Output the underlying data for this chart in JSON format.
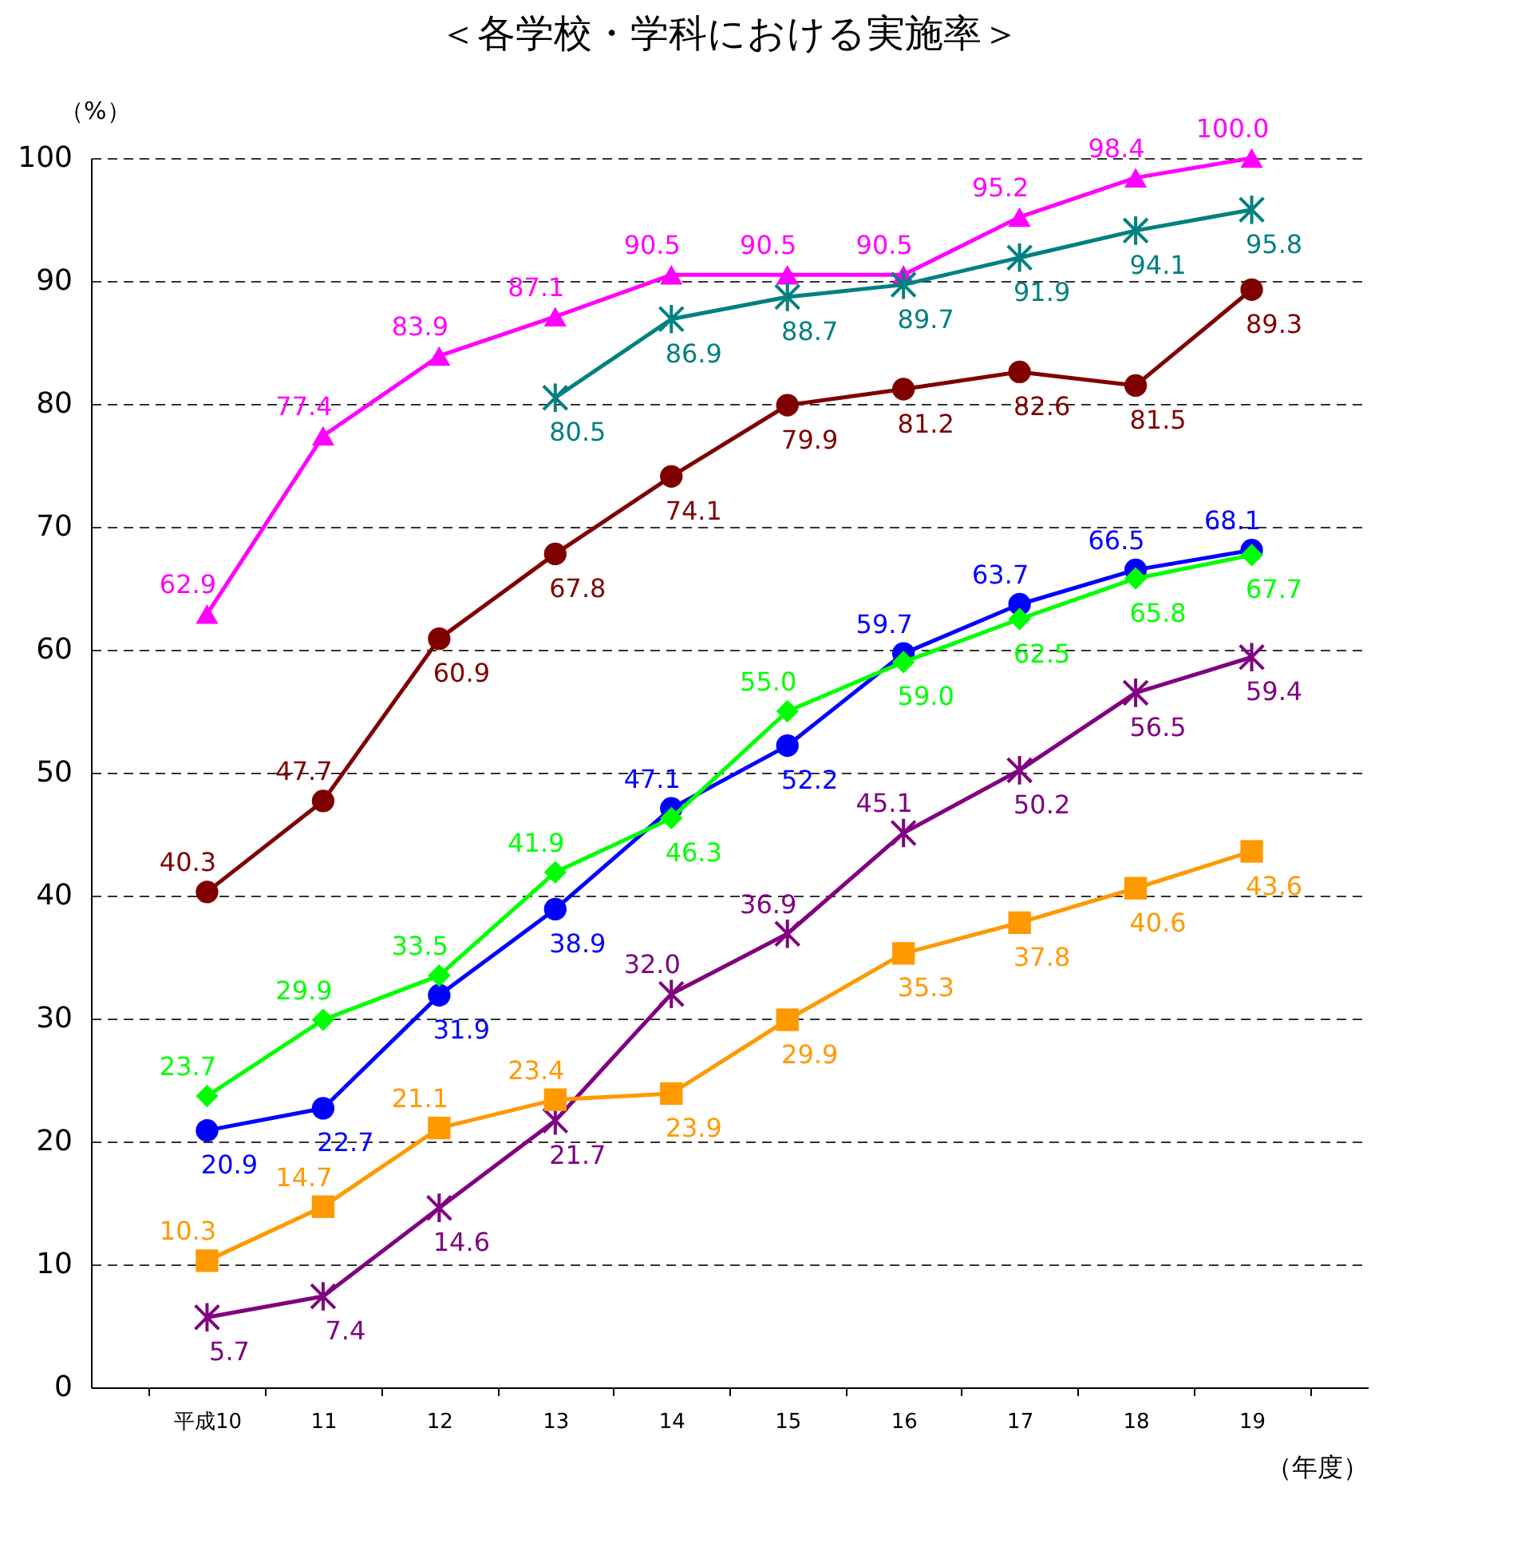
{
  "chart_data": {
    "type": "line",
    "title": "＜各学校・学科における実施率＞",
    "xlabel": "（年度）",
    "ylabel": "（%）",
    "categories": [
      "平成10",
      "11",
      "12",
      "13",
      "14",
      "15",
      "16",
      "17",
      "18",
      "19"
    ],
    "series": [
      {
        "color": "#ff00ff",
        "marker": "triangle",
        "values": [
          62.9,
          77.4,
          83.9,
          87.1,
          90.5,
          90.5,
          90.5,
          95.2,
          98.4,
          100.0
        ],
        "value_labels": [
          "62.9",
          "77.4",
          "83.9",
          "87.1",
          "90.5",
          "90.5",
          "90.5",
          "95.2",
          "98.4",
          "100.0"
        ]
      },
      {
        "color": "#008080",
        "marker": "cross",
        "values": [
          null,
          null,
          null,
          80.5,
          86.9,
          88.7,
          89.7,
          91.9,
          94.1,
          95.8
        ],
        "value_labels": [
          null,
          null,
          null,
          "80.5",
          "86.9",
          "88.7",
          "89.7",
          "91.9",
          "94.1",
          "95.8"
        ]
      },
      {
        "color": "#800000",
        "marker": "circle",
        "values": [
          40.3,
          47.7,
          60.9,
          67.8,
          74.1,
          79.9,
          81.2,
          82.6,
          81.5,
          89.3
        ],
        "value_labels": [
          "40.3",
          "47.7",
          "60.9",
          "67.8",
          "74.1",
          "79.9",
          "81.2",
          "82.6",
          "81.5",
          "89.3"
        ]
      },
      {
        "color": "#0000ff",
        "marker": "circle",
        "values": [
          20.9,
          22.7,
          31.9,
          38.9,
          47.1,
          52.2,
          59.7,
          63.7,
          66.5,
          68.1
        ],
        "value_labels": [
          "20.9",
          "22.7",
          "31.9",
          "38.9",
          "47.1",
          "52.2",
          "59.7",
          "63.7",
          "66.5",
          "68.1"
        ]
      },
      {
        "color": "#00ff00",
        "marker": "diamond",
        "values": [
          23.7,
          29.9,
          33.5,
          41.9,
          46.3,
          55.0,
          59.0,
          62.5,
          65.8,
          67.7
        ],
        "value_labels": [
          "23.7",
          "29.9",
          "33.5",
          "41.9",
          "46.3",
          "55.0",
          "59.0",
          "62.5",
          "65.8",
          "67.7"
        ]
      },
      {
        "color": "#800080",
        "marker": "cross",
        "values": [
          5.7,
          7.4,
          14.6,
          21.7,
          32.0,
          36.9,
          45.1,
          50.2,
          56.5,
          59.4
        ],
        "value_labels": [
          "5.7",
          "7.4",
          "14.6",
          "21.7",
          "32.0",
          "36.9",
          "45.1",
          "50.2",
          "56.5",
          "59.4"
        ]
      },
      {
        "color": "#ff9900",
        "marker": "square",
        "values": [
          10.3,
          14.7,
          21.1,
          23.4,
          23.9,
          29.9,
          35.3,
          37.8,
          40.6,
          43.6
        ],
        "value_labels": [
          "10.3",
          "14.7",
          "21.1",
          "23.4",
          "23.9",
          "29.9",
          "35.3",
          "37.8",
          "40.6",
          "43.6"
        ]
      }
    ],
    "ylim": [
      0,
      100
    ],
    "yticks": [
      0,
      10,
      20,
      30,
      40,
      50,
      60,
      70,
      80,
      90,
      100
    ],
    "grid": "y",
    "line_style": "solid"
  }
}
